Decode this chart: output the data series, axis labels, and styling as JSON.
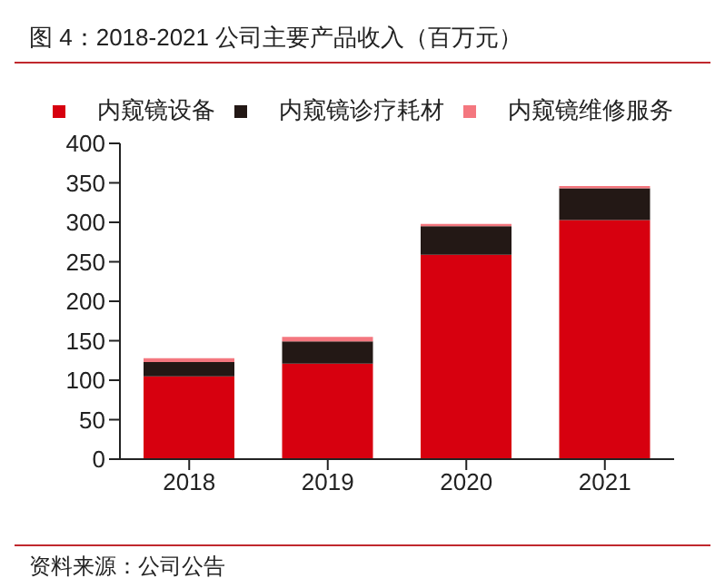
{
  "chart_data": {
    "type": "bar",
    "title": "图 4：2018-2021 公司主要产品收入（百万元）",
    "categories": [
      "2018",
      "2019",
      "2020",
      "2021"
    ],
    "stacked": true,
    "series": [
      {
        "name": "内窥镜设备",
        "color": "#d7000f",
        "values": [
          105,
          121,
          259,
          303
        ]
      },
      {
        "name": "内窥镜诊疗耗材",
        "color": "#231815",
        "values": [
          18,
          28,
          36,
          40
        ]
      },
      {
        "name": "内窥镜维修服务",
        "color": "#f4777f",
        "values": [
          5,
          6,
          3,
          3
        ]
      }
    ],
    "ylim": [
      0,
      400
    ],
    "yticks": [
      0,
      50,
      100,
      150,
      200,
      250,
      300,
      350,
      400
    ],
    "grid": false,
    "legend": "top",
    "annotations": [
      "资料来源：公司公告"
    ]
  }
}
